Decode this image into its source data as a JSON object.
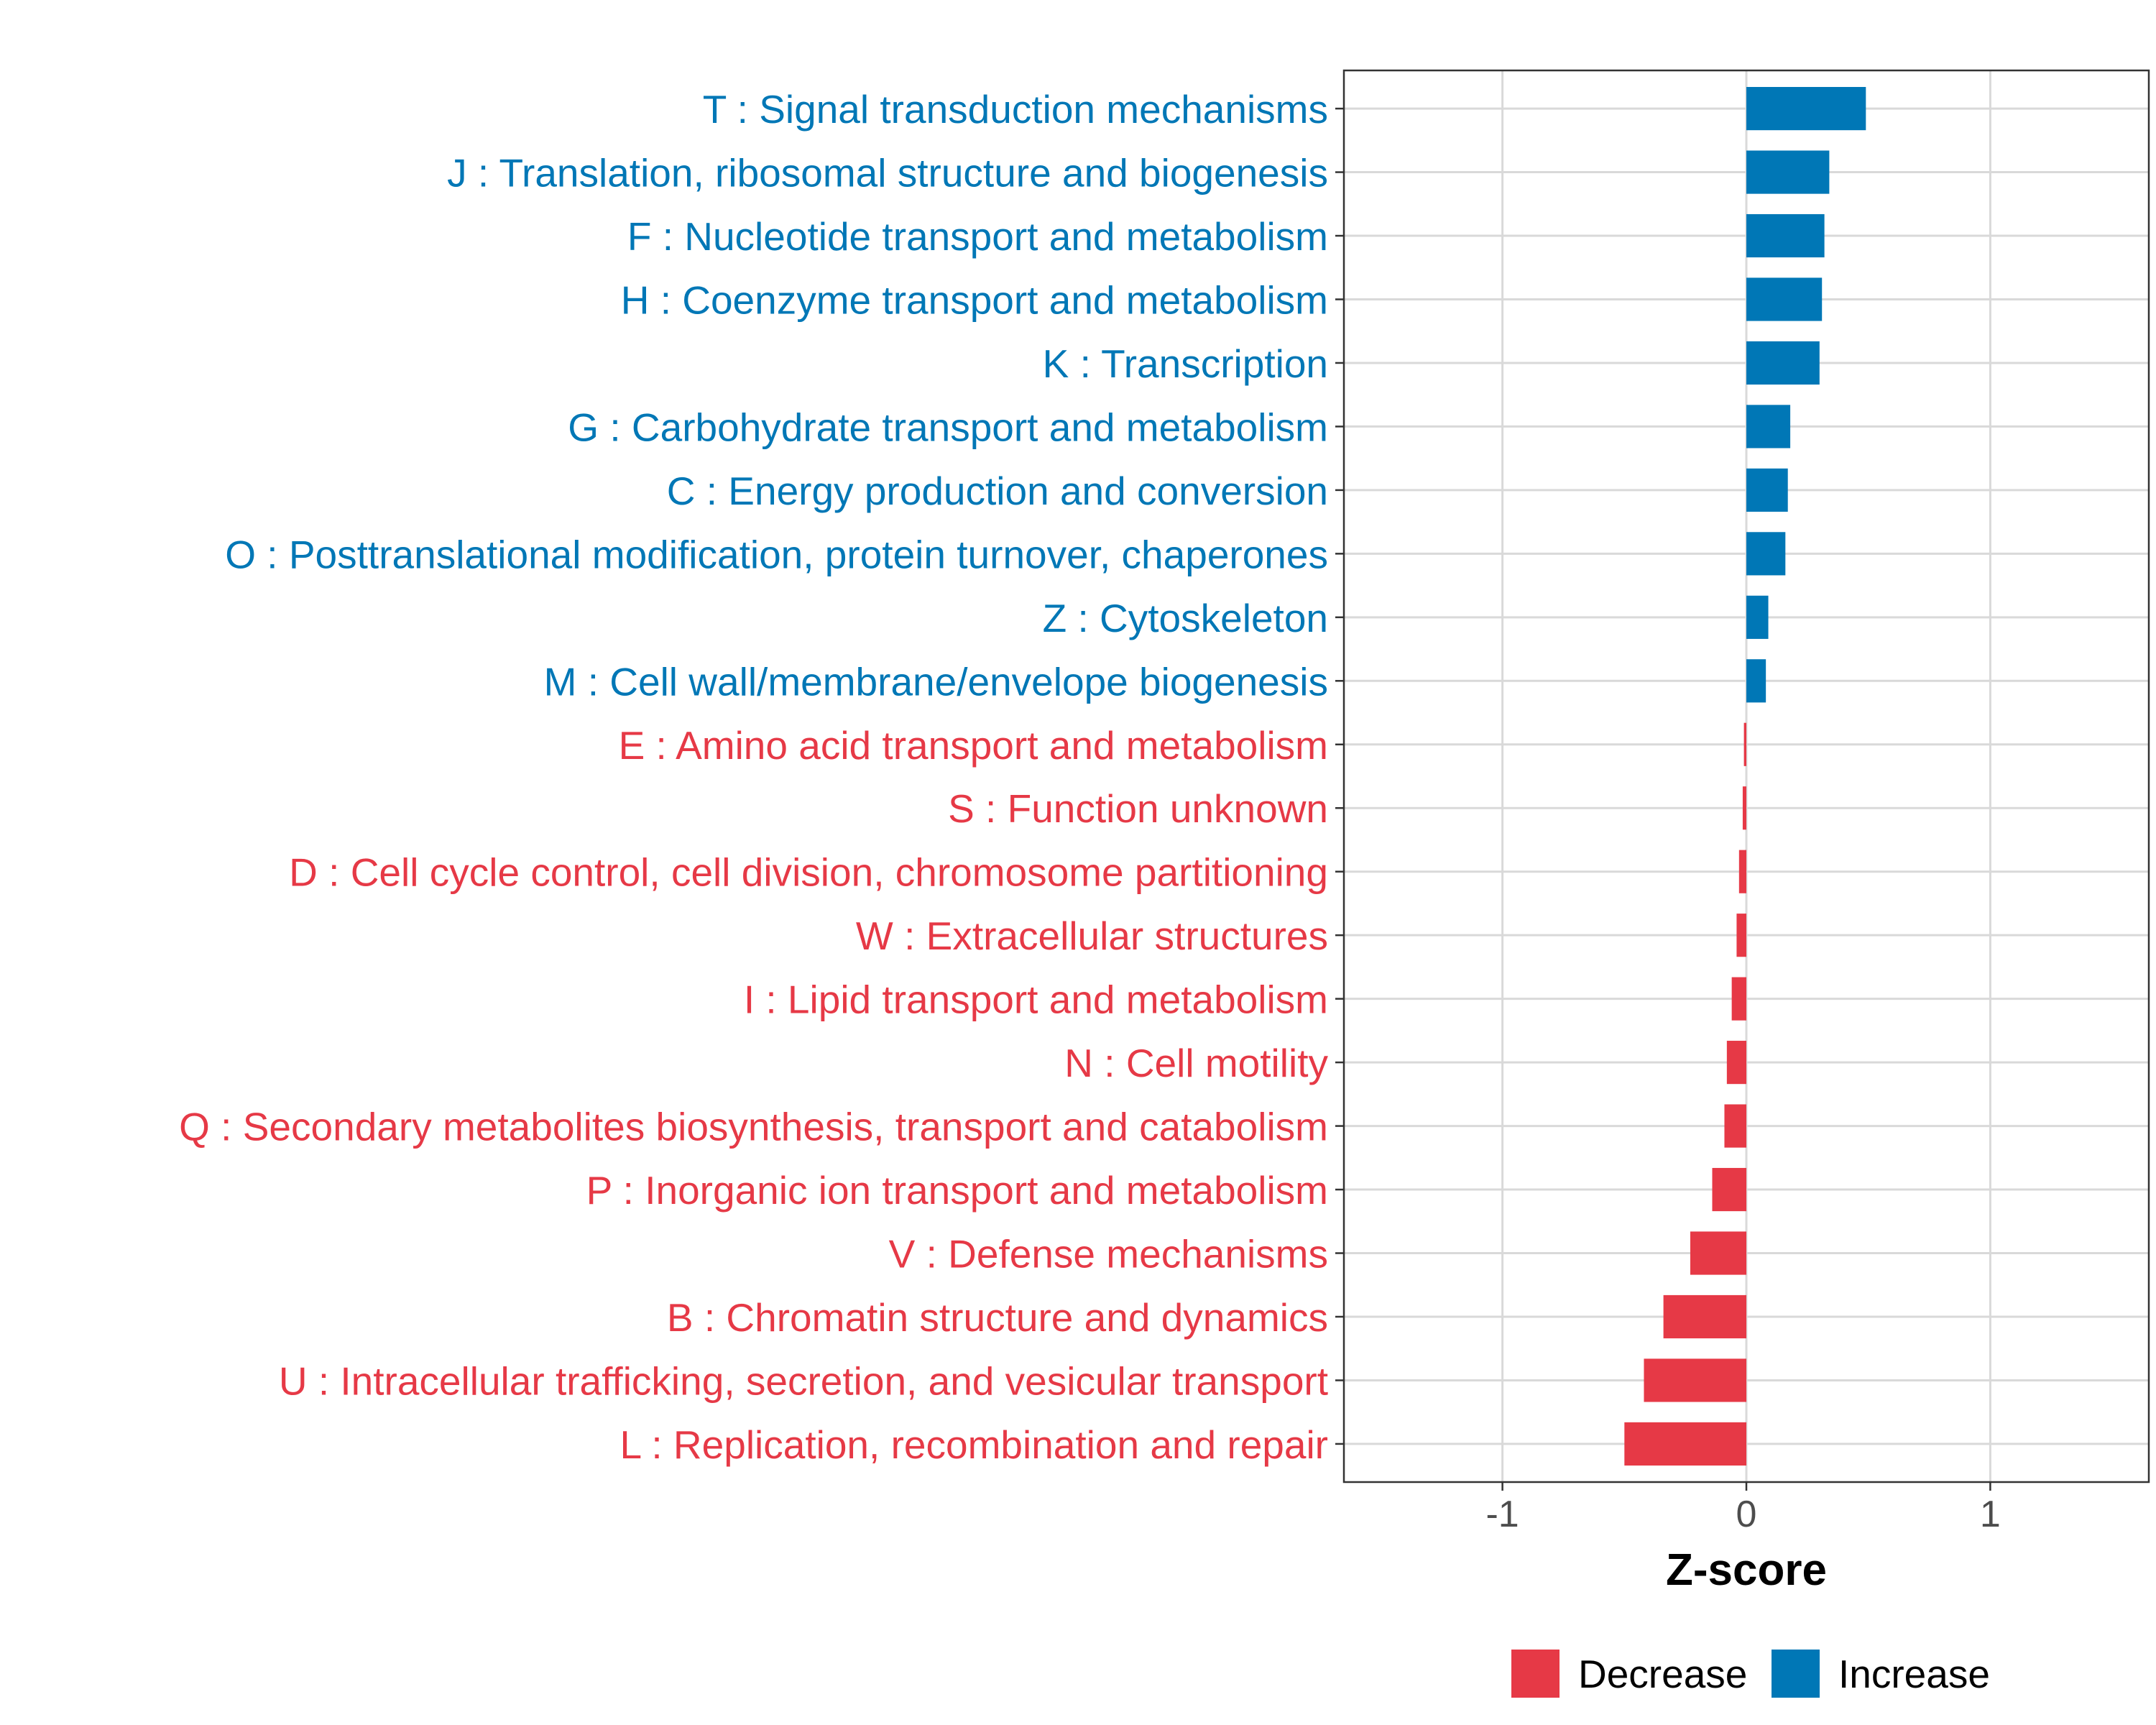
{
  "chart_data": {
    "type": "bar",
    "orientation": "horizontal",
    "xlabel": "Z-score",
    "ylabel": "",
    "xlim": [
      -1.65,
      1.65
    ],
    "xticks": [
      -1,
      0,
      1
    ],
    "xtick_labels": [
      "-1",
      "0",
      "1"
    ],
    "grid": true,
    "legend_position": "bottom",
    "legend": [
      {
        "name": "Decrease",
        "color": "#E63946"
      },
      {
        "name": "Increase",
        "color": "#0077B6"
      }
    ],
    "categories": [
      "T : Signal transduction mechanisms",
      "J : Translation, ribosomal structure and biogenesis",
      "F : Nucleotide transport and metabolism",
      "H : Coenzyme transport and metabolism",
      "K : Transcription",
      "G : Carbohydrate transport and metabolism",
      "C : Energy production and conversion",
      "O : Posttranslational modification, protein turnover, chaperones",
      "Z : Cytoskeleton",
      "M : Cell wall/membrane/envelope biogenesis",
      "E : Amino acid transport and metabolism",
      "S : Function unknown",
      "D : Cell cycle control, cell division, chromosome partitioning",
      "W : Extracellular structures",
      "I : Lipid transport and metabolism",
      "N : Cell motility",
      "Q : Secondary metabolites biosynthesis, transport and catabolism",
      "P : Inorganic ion transport and metabolism",
      "V : Defense mechanisms",
      "B : Chromatin structure and dynamics",
      "U : Intracellular trafficking, secretion, and vesicular transport",
      "L : Replication, recombination and repair"
    ],
    "values": [
      0.49,
      0.34,
      0.32,
      0.31,
      0.3,
      0.18,
      0.17,
      0.16,
      0.09,
      0.08,
      -0.01,
      -0.015,
      -0.03,
      -0.04,
      -0.06,
      -0.08,
      -0.09,
      -0.14,
      -0.23,
      -0.34,
      -0.42,
      -0.5
    ],
    "direction": [
      "Increase",
      "Increase",
      "Increase",
      "Increase",
      "Increase",
      "Increase",
      "Increase",
      "Increase",
      "Increase",
      "Increase",
      "Decrease",
      "Decrease",
      "Decrease",
      "Decrease",
      "Decrease",
      "Decrease",
      "Decrease",
      "Decrease",
      "Decrease",
      "Decrease",
      "Decrease",
      "Decrease"
    ]
  }
}
